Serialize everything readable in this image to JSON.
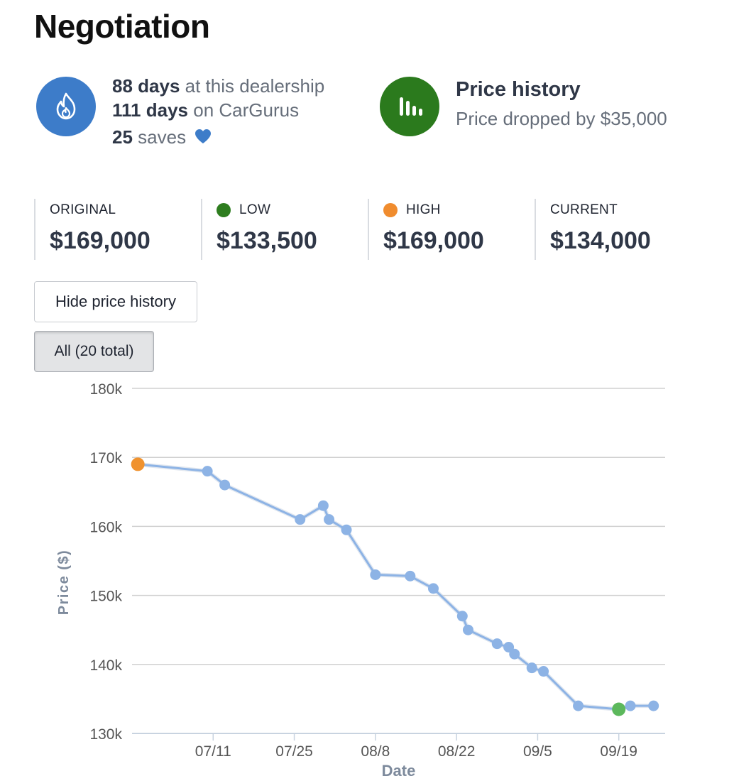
{
  "page": {
    "title": "Negotiation"
  },
  "dealer": {
    "days_dealer_value": "88 days",
    "days_dealer_text": "at this dealership",
    "days_site_value": "111 days",
    "days_site_text": "on CarGurus",
    "saves_value": "25",
    "saves_text": "saves",
    "icon": "flame-icon",
    "heart_icon": "heart-icon",
    "colors": {
      "icon_bg": "#3d7cc9",
      "heart": "#3d7cc9"
    }
  },
  "price_history": {
    "title": "Price history",
    "subtitle": "Price dropped by $35,000",
    "icon": "bar-chart-icon",
    "colors": {
      "icon_bg": "#2b7a1d"
    }
  },
  "stats": {
    "original": {
      "label": "ORIGINAL",
      "value": "$169,000"
    },
    "low": {
      "label": "LOW",
      "value": "$133,500",
      "color": "#2e7d1f"
    },
    "high": {
      "label": "HIGH",
      "value": "$169,000",
      "color": "#f08c2e"
    },
    "current": {
      "label": "CURRENT",
      "value": "$134,000"
    }
  },
  "buttons": {
    "hide_label": "Hide price history",
    "all_label": "All (20 total)"
  },
  "chart_data": {
    "type": "line",
    "xlabel": "Date",
    "ylabel": "Price ($)",
    "ylim": [
      130000,
      180000
    ],
    "yticks": [
      130000,
      140000,
      150000,
      160000,
      170000,
      180000
    ],
    "ytick_labels": [
      "130k",
      "140k",
      "150k",
      "160k",
      "170k",
      "180k"
    ],
    "xlim": [
      "2023-06-27",
      "2023-09-27"
    ],
    "xticks": [
      "2023-07-11",
      "2023-07-25",
      "2023-08-08",
      "2023-08-22",
      "2023-09-05",
      "2023-09-19"
    ],
    "xtick_labels": [
      "07/11",
      "07/25",
      "08/8",
      "08/22",
      "09/5",
      "09/19"
    ],
    "grid": true,
    "series": [
      {
        "x": [
          "2023-06-28",
          "2023-07-10",
          "2023-07-13",
          "2023-07-26",
          "2023-07-30",
          "2023-07-31",
          "2023-08-03",
          "2023-08-08",
          "2023-08-14",
          "2023-08-18",
          "2023-08-23",
          "2023-08-24",
          "2023-08-29",
          "2023-08-31",
          "2023-09-01",
          "2023-09-04",
          "2023-09-06",
          "2023-09-12",
          "2023-09-19",
          "2023-09-21",
          "2023-09-25"
        ],
        "y": [
          169000,
          168000,
          166000,
          161000,
          163000,
          161000,
          159500,
          153000,
          152800,
          151000,
          147000,
          145000,
          143000,
          142500,
          141500,
          139500,
          139000,
          134000,
          133500,
          134000,
          134000
        ],
        "color": "#8db3e5"
      }
    ],
    "markers": {
      "high": {
        "x": "2023-06-28",
        "y": 169000,
        "color": "#f0922e"
      },
      "low": {
        "x": "2023-09-19",
        "y": 133500,
        "color": "#5cb85c"
      }
    }
  }
}
